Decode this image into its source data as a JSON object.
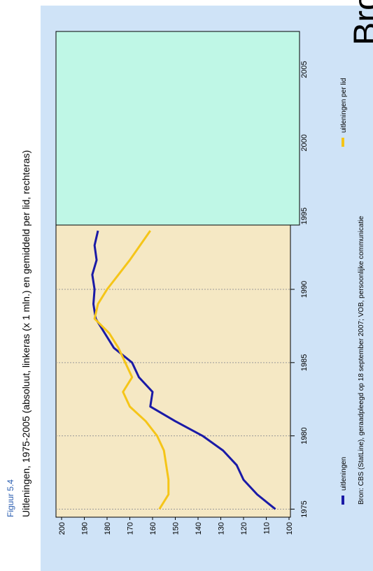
{
  "chart_data": {
    "type": "line",
    "label": "Figuur 5.4",
    "title": "Uitleningen, 1975-2005 (absoluut, linkeras (x 1 mln.) en gemiddeld per lid, rechteras)",
    "source": "Bron: CBS (StatLine), geraadpleegd op 18 september 2007; VOB, persoonlijke communicatie",
    "overlay_text": "Bro",
    "x": [
      1975,
      1976,
      1977,
      1978,
      1979,
      1980,
      1981,
      1982,
      1983,
      1984,
      1985,
      1986,
      1987,
      1988,
      1989,
      1990,
      1991,
      1992,
      1993,
      1994
    ],
    "series": [
      {
        "name": "uitleningen",
        "color": "#1a1aa6",
        "values": [
          106,
          114,
          120,
          123,
          129,
          138,
          150,
          161,
          160,
          166,
          169,
          177,
          181,
          185,
          186,
          185.5,
          186.5,
          184.6,
          185.5,
          184
        ]
      },
      {
        "name": "uitleningen per lid",
        "color": "#f5c518",
        "values": [
          157,
          153,
          153,
          154,
          155,
          158,
          163,
          170,
          173,
          169,
          172,
          175,
          179,
          185.5,
          184,
          180,
          175,
          170,
          165.5,
          161
        ]
      }
    ],
    "xlim": [
      1974.45,
      2007.6
    ],
    "xticks": [
      1975,
      1980,
      1985,
      1990,
      1995,
      2000,
      2005
    ],
    "ylim": [
      100,
      200
    ],
    "yticks": [
      100,
      110,
      120,
      130,
      140,
      150,
      160,
      170,
      180,
      190,
      200
    ],
    "grid": true
  }
}
